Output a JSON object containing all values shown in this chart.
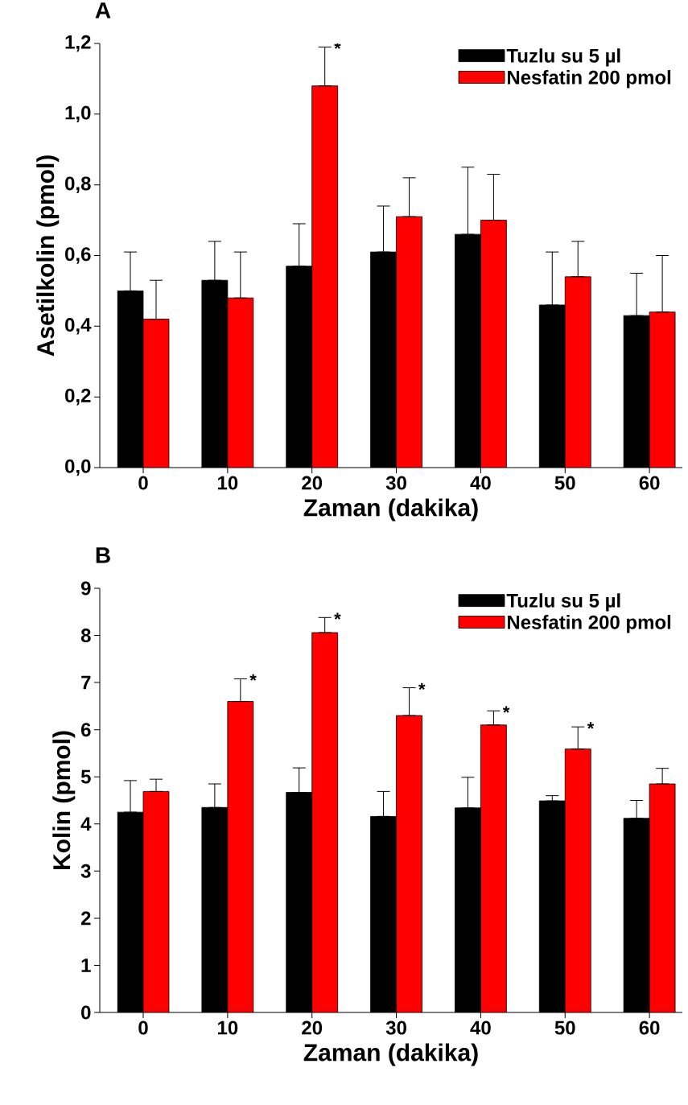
{
  "chart_data": [
    {
      "type": "bar",
      "title": "A",
      "xlabel": "Zaman (dakika)",
      "ylabel": "Asetilkolin (pmol)",
      "categories": [
        "0",
        "10",
        "20",
        "30",
        "40",
        "50",
        "60"
      ],
      "ylim": [
        0,
        1.2
      ],
      "yticks": [
        {
          "value": 0,
          "label": "0,0"
        },
        {
          "value": 0.2,
          "label": "0,2"
        },
        {
          "value": 0.4,
          "label": "0,4"
        },
        {
          "value": 0.6,
          "label": "0,6"
        },
        {
          "value": 0.8,
          "label": "0,8"
        },
        {
          "value": 1.0,
          "label": "1,0"
        },
        {
          "value": 1.2,
          "label": "1,2"
        }
      ],
      "series": [
        {
          "name": "Tuzlu su 5 µl",
          "color": "#000000",
          "values": [
            0.5,
            0.53,
            0.57,
            0.61,
            0.66,
            0.46,
            0.43
          ],
          "errors": [
            [
              0.5,
              0.61
            ],
            [
              0.53,
              0.64
            ],
            [
              0.57,
              0.69
            ],
            [
              0.61,
              0.74
            ],
            [
              0.66,
              0.85
            ],
            [
              0.46,
              0.61
            ],
            [
              0.43,
              0.55
            ]
          ]
        },
        {
          "name": "Nesfatin 200 pmol",
          "color": "#ff0000",
          "values": [
            0.42,
            0.48,
            1.08,
            0.71,
            0.7,
            0.54,
            0.44
          ],
          "errors": [
            [
              0.42,
              0.53
            ],
            [
              0.48,
              0.61
            ],
            [
              1.08,
              1.19
            ],
            [
              0.71,
              0.82
            ],
            [
              0.7,
              0.83
            ],
            [
              0.54,
              0.64
            ],
            [
              0.44,
              0.6
            ]
          ]
        }
      ],
      "legend": "top right",
      "annotations": [
        {
          "text": "*",
          "x": "20",
          "y": 1.08
        }
      ]
    },
    {
      "type": "bar",
      "title": "B",
      "xlabel": "Zaman (dakika)",
      "ylabel": "Kolin (pmol)",
      "categories": [
        "0",
        "10",
        "20",
        "30",
        "40",
        "50",
        "60"
      ],
      "ylim": [
        0,
        9
      ],
      "yticks": [
        0,
        1,
        2,
        3,
        4,
        5,
        6,
        7,
        8,
        9
      ],
      "series": [
        {
          "name": "Tuzlu su 5 µl",
          "color": "#000000",
          "values": [
            4.25,
            4.35,
            4.67,
            4.16,
            4.34,
            4.49,
            4.12
          ],
          "errors": [
            [
              4.25,
              4.92
            ],
            [
              4.35,
              4.85
            ],
            [
              4.67,
              5.19
            ],
            [
              4.16,
              4.69
            ],
            [
              4.34,
              4.99
            ],
            [
              4.49,
              4.6
            ],
            [
              4.12,
              4.5
            ]
          ]
        },
        {
          "name": "Nesfatin 200 pmol",
          "color": "#ff0000",
          "values": [
            4.69,
            6.6,
            8.06,
            6.3,
            6.1,
            5.59,
            4.85
          ],
          "errors": [
            [
              4.69,
              4.95
            ],
            [
              6.6,
              7.08
            ],
            [
              8.06,
              8.38
            ],
            [
              6.3,
              6.89
            ],
            [
              6.1,
              6.4
            ],
            [
              5.59,
              6.06
            ],
            [
              4.85,
              5.18
            ]
          ]
        }
      ],
      "legend": "top right",
      "annotations": [
        {
          "text": "*",
          "x": "10",
          "y": 6.6
        },
        {
          "text": "*",
          "x": "20",
          "y": 8.06
        },
        {
          "text": "*",
          "x": "30",
          "y": 6.3
        },
        {
          "text": "*",
          "x": "40",
          "y": 6.1
        },
        {
          "text": "*",
          "x": "50",
          "y": 5.59
        }
      ]
    }
  ]
}
